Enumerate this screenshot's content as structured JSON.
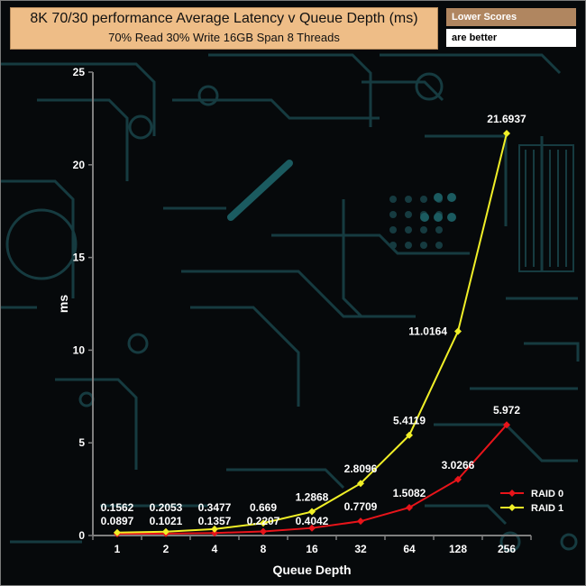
{
  "header": {
    "title": "8K 70/30 performance Average Latency v Queue Depth (ms)",
    "subtitle": "70% Read 30% Write 16GB Span 8 Threads"
  },
  "note": {
    "heading": "Lower Scores",
    "text": "are better"
  },
  "colors": {
    "raid0": "#e8141a",
    "raid1": "#f0ef27",
    "axis": "#7f7f7f",
    "background": "#06090b",
    "circuit": "#163b40"
  },
  "chart_data": {
    "type": "line",
    "title": "8K 70/30 performance Average Latency v Queue Depth (ms)",
    "subtitle": "70% Read 30% Write 16GB Span 8 Threads",
    "xlabel": "Queue Depth",
    "ylabel": "ms",
    "categories": [
      "1",
      "2",
      "4",
      "8",
      "16",
      "32",
      "64",
      "128",
      "256"
    ],
    "ylim": [
      0,
      25
    ],
    "yticks": [
      0,
      5,
      10,
      15,
      20,
      25
    ],
    "grid": false,
    "legend_position": "bottom-right",
    "series": [
      {
        "name": "RAID 0",
        "color": "#e8141a",
        "values": [
          0.0897,
          0.1021,
          0.1357,
          0.2207,
          0.4042,
          0.7709,
          1.5082,
          3.0266,
          5.972
        ],
        "labels": [
          "0.0897",
          "0.1021",
          "0.1357",
          "0.2207",
          "0.4042",
          "0.7709",
          "1.5082",
          "3.0266",
          "5.972"
        ]
      },
      {
        "name": "RAID 1",
        "color": "#f0ef27",
        "values": [
          0.1562,
          0.2053,
          0.3477,
          0.669,
          1.2868,
          2.8096,
          5.4119,
          11.0164,
          21.6937
        ],
        "labels": [
          "0.1562",
          "0.2053",
          "0.3477",
          "0.669",
          "1.2868",
          "2.8096",
          "5.4119",
          "11.0164",
          "21.6937"
        ]
      }
    ]
  }
}
